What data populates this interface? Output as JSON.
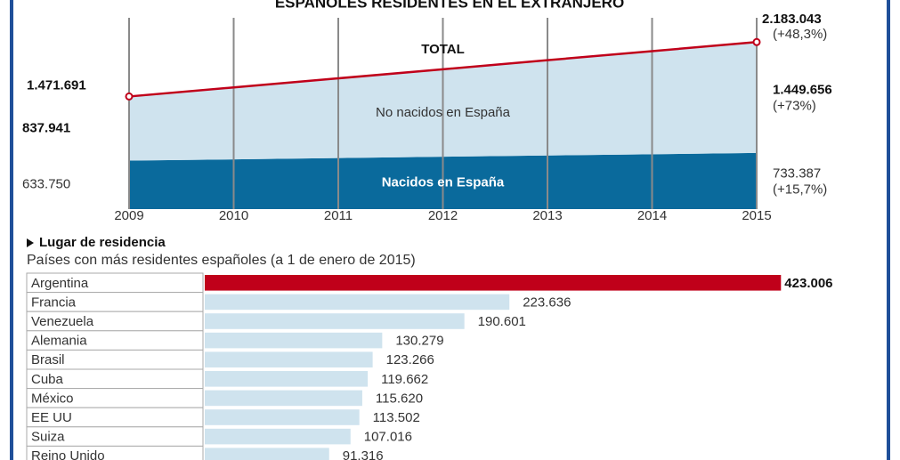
{
  "chart_data": [
    {
      "type": "stacked-area",
      "title": "ESPAÑOLES RESIDENTES EN EL EXTRANJERO",
      "categories": [
        "2009",
        "2010",
        "2011",
        "2012",
        "2013",
        "2014",
        "2015"
      ],
      "ylim": [
        0,
        2500000
      ],
      "series": [
        {
          "name": "Nacidos en España",
          "color": "#0a6a9c",
          "values": [
            633750,
            650000,
            667000,
            684000,
            700000,
            717000,
            733387
          ],
          "value_labels": [
            "633.750",
            null,
            null,
            null,
            null,
            null,
            "733.387"
          ],
          "change_label": "(+15,7%)"
        },
        {
          "name": "No nacidos en España",
          "color": "#cfe3ee",
          "values": [
            837941,
            940000,
            1042000,
            1143000,
            1246000,
            1347000,
            1449656
          ],
          "value_labels": [
            "837.941",
            null,
            null,
            null,
            null,
            null,
            "1.449.656"
          ],
          "change_label": "(+73%)"
        },
        {
          "name": "TOTAL",
          "type": "line",
          "color": "#c0001a",
          "values": [
            1471691,
            1590000,
            1709000,
            1827000,
            1946000,
            2064000,
            2183043
          ],
          "value_labels": [
            "1.471.691",
            null,
            null,
            null,
            null,
            null,
            "2.183.043"
          ],
          "change_label": "(+48,3%)"
        }
      ],
      "grid": true
    },
    {
      "type": "hbar",
      "title": "Lugar de residencia",
      "subtitle": "Países con más residentes españoles (a 1 de enero de 2015)",
      "categories": [
        "Argentina",
        "Francia",
        "Venezuela",
        "Alemania",
        "Brasil",
        "Cuba",
        "México",
        "EE UU",
        "Suiza",
        "Reino Unido"
      ],
      "values": [
        423006,
        223636,
        190601,
        130279,
        123266,
        119662,
        115620,
        113502,
        107016,
        91316
      ],
      "value_labels": [
        "423.006",
        "223.636",
        "190.601",
        "130.279",
        "123.266",
        "119.662",
        "115.620",
        "113.502",
        "107.016",
        "91.316"
      ],
      "colors": [
        "#c0001a",
        "#cfe3ee",
        "#cfe3ee",
        "#cfe3ee",
        "#cfe3ee",
        "#cfe3ee",
        "#cfe3ee",
        "#cfe3ee",
        "#cfe3ee",
        "#cfe3ee"
      ],
      "xlim": [
        0,
        430000
      ]
    }
  ]
}
